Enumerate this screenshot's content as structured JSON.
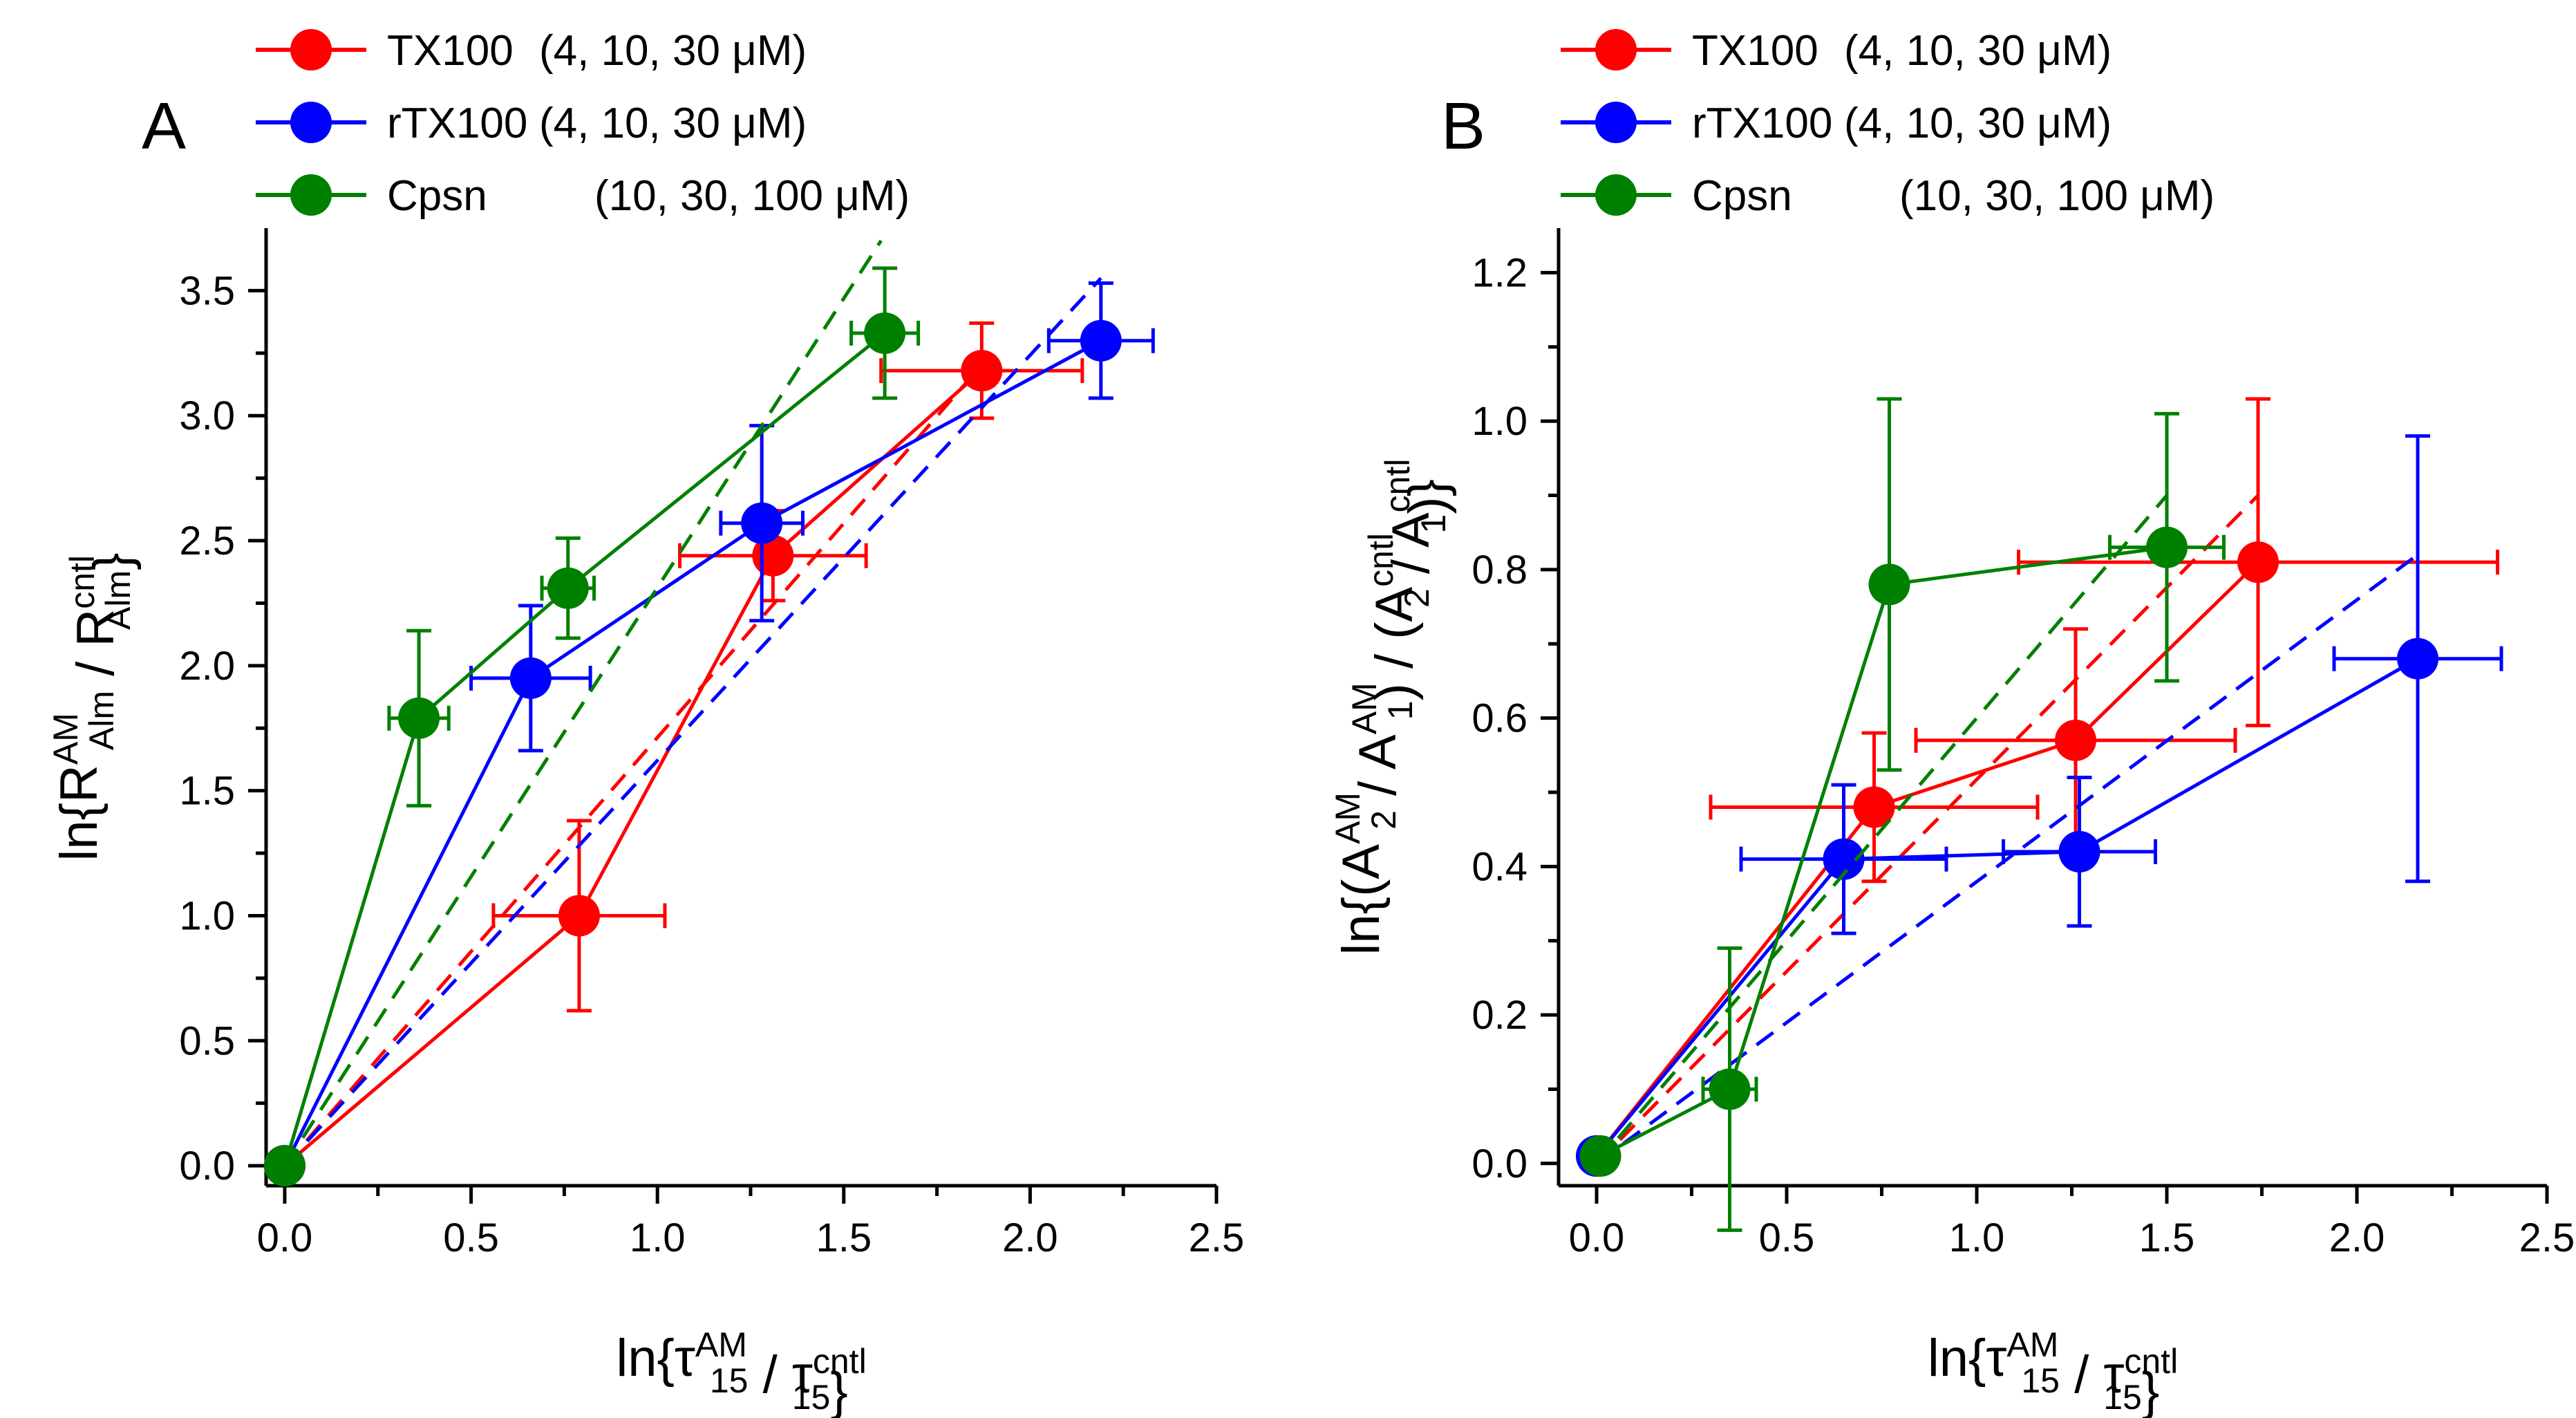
{
  "colors": {
    "TX100": "#ff0000",
    "rTX100": "#0000ff",
    "Cpsn": "#008000",
    "axis": "#000000"
  },
  "legend": [
    {
      "key": "TX100",
      "name": "TX100",
      "conc": "(4, 10, 30 μM)"
    },
    {
      "key": "rTX100",
      "name": "rTX100",
      "conc": "(4, 10, 30 μM)"
    },
    {
      "key": "Cpsn",
      "name": "Cpsn",
      "conc": "(10, 30, 100 μM)"
    }
  ],
  "chart_data": [
    {
      "type": "scatter",
      "panel": "A",
      "xlabel": {
        "pre": "ln{τ",
        "sub1": "15",
        "sup1": "AM",
        "mid": " / τ",
        "sub2": "15",
        "sup2": "cntl",
        "post": "}"
      },
      "ylabel": {
        "pre": "ln{R",
        "sub1": "Alm",
        "sup1": "AM",
        "mid": " / R",
        "sub2": "Alm",
        "sup2": "cntl",
        "post": "}"
      },
      "xlim": [
        -0.05,
        2.5
      ],
      "ylim": [
        -0.08,
        3.75
      ],
      "xticks": [
        0.0,
        0.5,
        1.0,
        1.5,
        2.0,
        2.5
      ],
      "xtick_labels": [
        "0.0",
        "0.5",
        "1.0",
        "1.5",
        "2.0",
        "2.5"
      ],
      "yticks": [
        0.0,
        0.5,
        1.0,
        1.5,
        2.0,
        2.5,
        3.0,
        3.5
      ],
      "ytick_labels": [
        "0.0",
        "0.5",
        "1.0",
        "1.5",
        "2.0",
        "2.5",
        "3.0",
        "3.5"
      ],
      "series": [
        {
          "name": "TX100",
          "points": [
            {
              "x": 0.0,
              "y": 0.0
            },
            {
              "x": 0.79,
              "y": 1.0,
              "xerr": 0.23,
              "yerr": 0.38
            },
            {
              "x": 1.31,
              "y": 2.44,
              "xerr": 0.25,
              "yerr": 0.18
            },
            {
              "x": 1.87,
              "y": 3.18,
              "xerr": 0.27,
              "yerr": 0.19
            }
          ],
          "fit": [
            [
              0.0,
              0.0
            ],
            [
              1.88,
              3.22
            ]
          ]
        },
        {
          "name": "rTX100",
          "points": [
            {
              "x": 0.0,
              "y": 0.0
            },
            {
              "x": 0.66,
              "y": 1.95,
              "xerr": 0.16,
              "yerr": 0.29
            },
            {
              "x": 1.28,
              "y": 2.57,
              "xerr": 0.11,
              "yerr": 0.39
            },
            {
              "x": 2.19,
              "y": 3.3,
              "xerr": 0.14,
              "yerr": 0.23
            }
          ],
          "fit": [
            [
              0.0,
              0.0
            ],
            [
              2.19,
              3.55
            ]
          ]
        },
        {
          "name": "Cpsn",
          "points": [
            {
              "x": 0.0,
              "y": 0.0
            },
            {
              "x": 0.36,
              "y": 1.79,
              "xerr": 0.08,
              "yerr": 0.35
            },
            {
              "x": 0.76,
              "y": 2.31,
              "xerr": 0.07,
              "yerr": 0.2
            },
            {
              "x": 1.61,
              "y": 3.33,
              "xerr": 0.09,
              "yerr": 0.26
            }
          ],
          "fit": [
            [
              0.0,
              0.0
            ],
            [
              1.6,
              3.7
            ]
          ]
        }
      ]
    },
    {
      "type": "scatter",
      "panel": "B",
      "xlabel": {
        "pre": "ln{τ",
        "sub1": "15",
        "sup1": "AM",
        "mid": " / τ",
        "sub2": "15",
        "sup2": "cntl",
        "post": "}"
      },
      "ylabel": {
        "pre": "ln{(A",
        "sub1": "2",
        "sup1": "AM",
        "mid": " / A",
        "sub2": "1",
        "sup2": "AM",
        "mid2": ") / (A",
        "sub3": "2",
        "sup3": "cntl",
        "mid3": " / A",
        "sub4": "1",
        "sup4": "cntl",
        "post": ")}"
      },
      "xlim": [
        -0.1,
        2.5
      ],
      "ylim": [
        -0.03,
        1.26
      ],
      "xticks": [
        0.0,
        0.5,
        1.0,
        1.5,
        2.0,
        2.5
      ],
      "xtick_labels": [
        "0.0",
        "0.5",
        "1.0",
        "1.5",
        "2.0",
        "2.5"
      ],
      "yticks": [
        0.0,
        0.2,
        0.4,
        0.6,
        0.8,
        1.0,
        1.2
      ],
      "ytick_labels": [
        "0.0",
        "0.2",
        "0.4",
        "0.6",
        "0.8",
        "1.0",
        "1.2"
      ],
      "series": [
        {
          "name": "TX100",
          "points": [
            {
              "x": 0.0,
              "y": 0.01
            },
            {
              "x": 0.73,
              "y": 0.48,
              "xerr": 0.43,
              "yerr": 0.1
            },
            {
              "x": 1.26,
              "y": 0.57,
              "xerr": 0.42,
              "yerr": 0.15
            },
            {
              "x": 1.74,
              "y": 0.81,
              "xerr": 0.63,
              "yerr": 0.22
            }
          ],
          "fit": [
            [
              0.0,
              0.0
            ],
            [
              1.74,
              0.9
            ]
          ]
        },
        {
          "name": "rTX100",
          "points": [
            {
              "x": 0.0,
              "y": 0.01
            },
            {
              "x": 0.65,
              "y": 0.41,
              "xerr": 0.27,
              "yerr": 0.1
            },
            {
              "x": 1.27,
              "y": 0.42,
              "xerr": 0.2,
              "yerr": 0.1
            },
            {
              "x": 2.16,
              "y": 0.68,
              "xerr": 0.22,
              "yerr": 0.3
            }
          ],
          "fit": [
            [
              0.0,
              0.0
            ],
            [
              2.16,
              0.82
            ]
          ]
        },
        {
          "name": "Cpsn",
          "points": [
            {
              "x": 0.01,
              "y": 0.01
            },
            {
              "x": 0.35,
              "y": 0.1,
              "xerr": 0.07,
              "yerr": 0.19
            },
            {
              "x": 0.77,
              "y": 0.78,
              "xerr": 0.0,
              "yerr": 0.25
            },
            {
              "x": 1.5,
              "y": 0.83,
              "xerr": 0.15,
              "yerr": 0.18
            }
          ],
          "fit": [
            [
              0.0,
              0.0
            ],
            [
              1.5,
              0.9
            ]
          ]
        }
      ]
    }
  ]
}
